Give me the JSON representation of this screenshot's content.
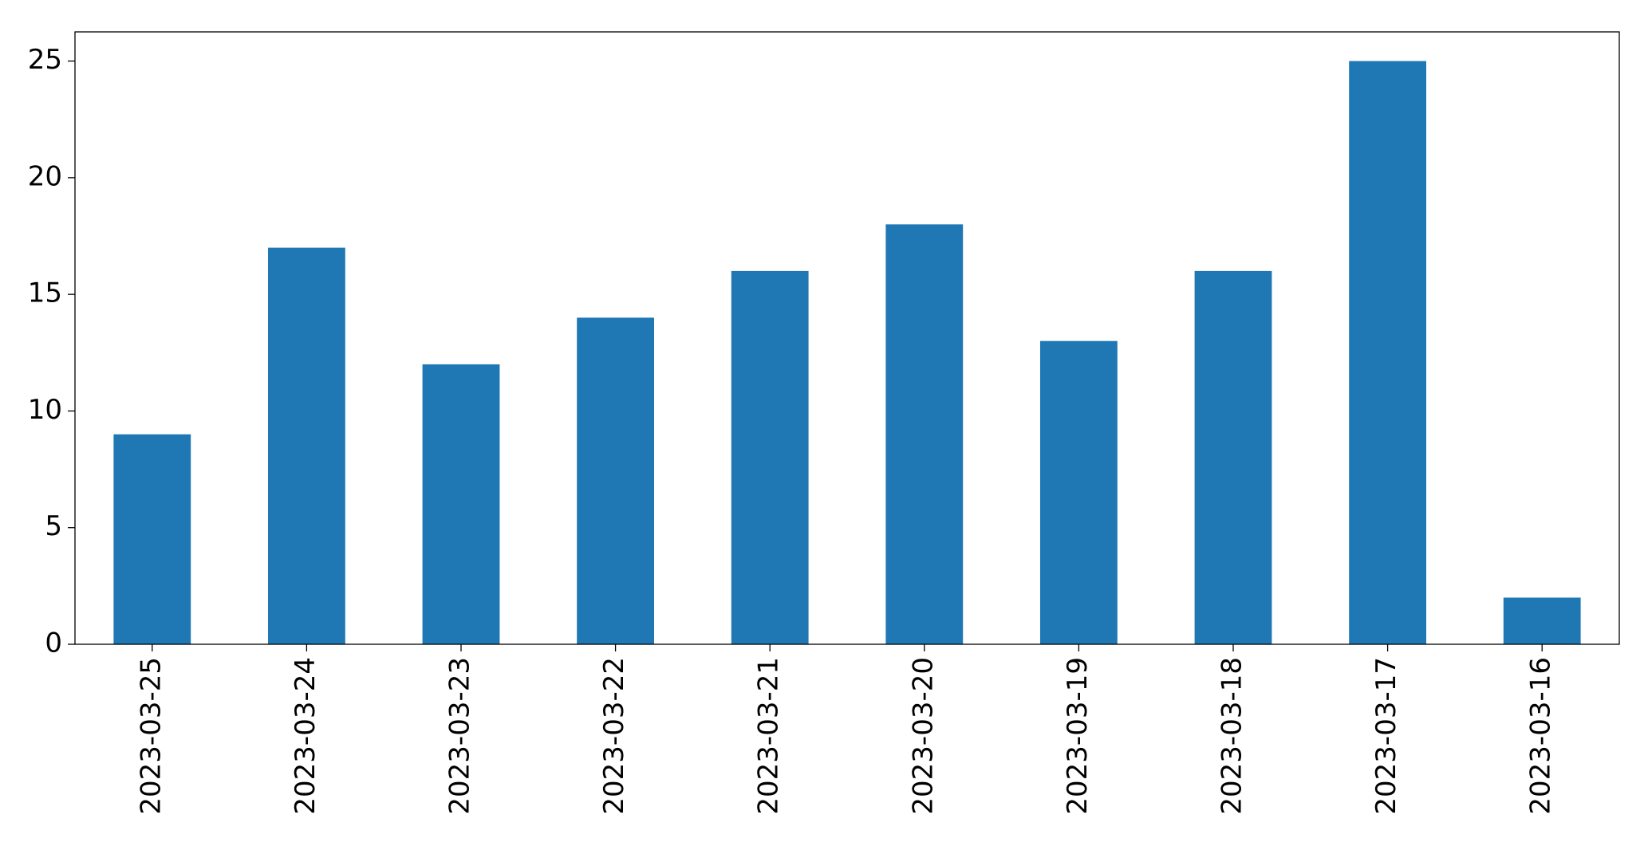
{
  "chart_data": {
    "type": "bar",
    "categories": [
      "2023-03-25",
      "2023-03-24",
      "2023-03-23",
      "2023-03-22",
      "2023-03-21",
      "2023-03-20",
      "2023-03-19",
      "2023-03-18",
      "2023-03-17",
      "2023-03-16"
    ],
    "values": [
      9,
      17,
      12,
      14,
      16,
      18,
      13,
      16,
      25,
      2
    ],
    "color": "#1f77b4",
    "ylim": [
      0,
      26.25
    ],
    "yticks": [
      0,
      5,
      10,
      15,
      20,
      25
    ],
    "grid": false
  }
}
